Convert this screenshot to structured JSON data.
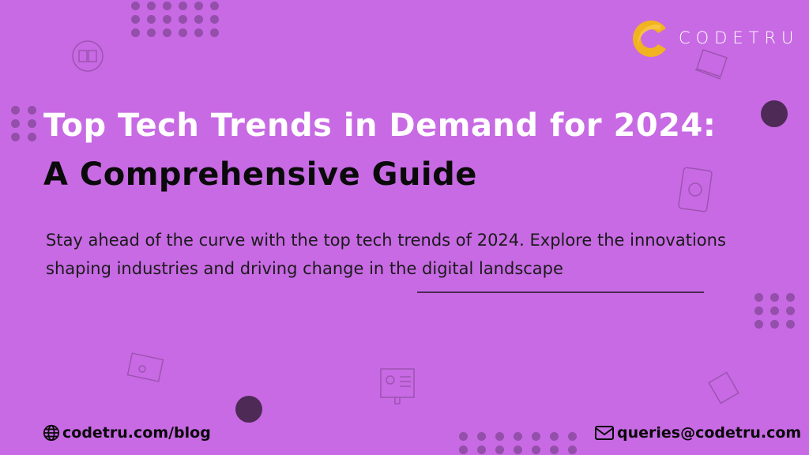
{
  "brand": {
    "name": "CODETRU",
    "accent": "#f2b320"
  },
  "colors": {
    "background": "#c86ae4",
    "dark": "#4e2a56"
  },
  "title_line1": "Top Tech Trends in Demand for 2024:",
  "title_line2": "A Comprehensive Guide",
  "description": "Stay ahead of the curve with the top tech trends of 2024. Explore the innovations shaping industries and driving change in the digital landscape",
  "footer": {
    "website": "codetru.com/blog",
    "website_icon": "globe-icon",
    "email": "queries@codetru.com",
    "email_icon": "mail-icon"
  }
}
